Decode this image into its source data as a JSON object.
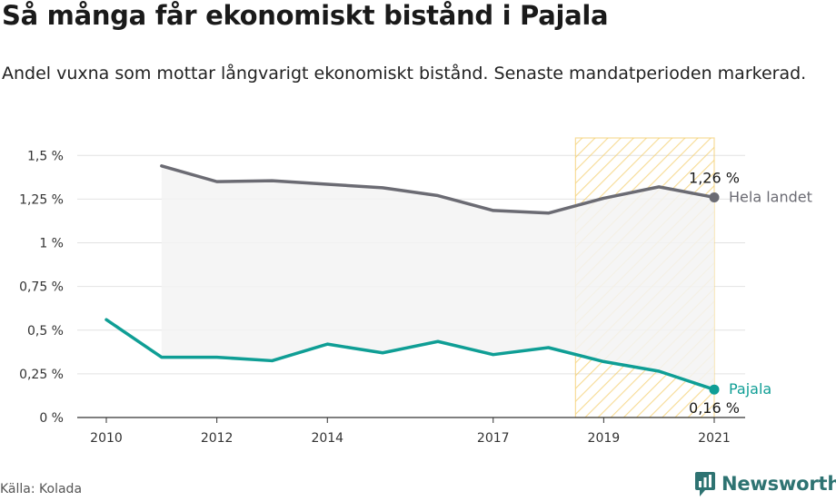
{
  "title": "Så många får ekonomiskt bistånd i Pajala",
  "subtitle": "Andel vuxna som mottar långvarigt ekonomiskt bistånd. Senaste mandatperioden markerad.",
  "source": "Källa: Kolada",
  "brand": "Newsworthy",
  "colors": {
    "national": "#6b6b73",
    "local": "#0f9e95",
    "highlight": "#f5cf6e",
    "grid": "#e2e2e2",
    "fill": "#f3f3f3"
  },
  "chart_data": {
    "type": "line",
    "x_ticks": [
      "2010",
      "2012",
      "2014",
      "2017",
      "2019",
      "2021"
    ],
    "y_ticks": [
      "0 %",
      "0,25 %",
      "0,5 %",
      "0,75 %",
      "1 %",
      "1,25 %",
      "1,5 %"
    ],
    "ylim": [
      0,
      1.6
    ],
    "xlim": [
      2010,
      2021
    ],
    "highlight_period": [
      2019,
      2021
    ],
    "series": [
      {
        "name": "Hela landet",
        "x": [
          2011,
          2012,
          2013,
          2014,
          2015,
          2016,
          2017,
          2018,
          2019,
          2020,
          2021
        ],
        "values": [
          1.44,
          1.35,
          1.355,
          1.335,
          1.315,
          1.27,
          1.185,
          1.17,
          1.255,
          1.32,
          1.26
        ],
        "end_label": "1,26 %"
      },
      {
        "name": "Pajala",
        "x": [
          2010,
          2011,
          2012,
          2013,
          2014,
          2015,
          2016,
          2017,
          2018,
          2019,
          2020,
          2021
        ],
        "values": [
          0.56,
          0.345,
          0.345,
          0.325,
          0.42,
          0.37,
          0.435,
          0.36,
          0.4,
          0.32,
          0.265,
          0.16
        ],
        "end_label": "0,16 %"
      }
    ]
  }
}
